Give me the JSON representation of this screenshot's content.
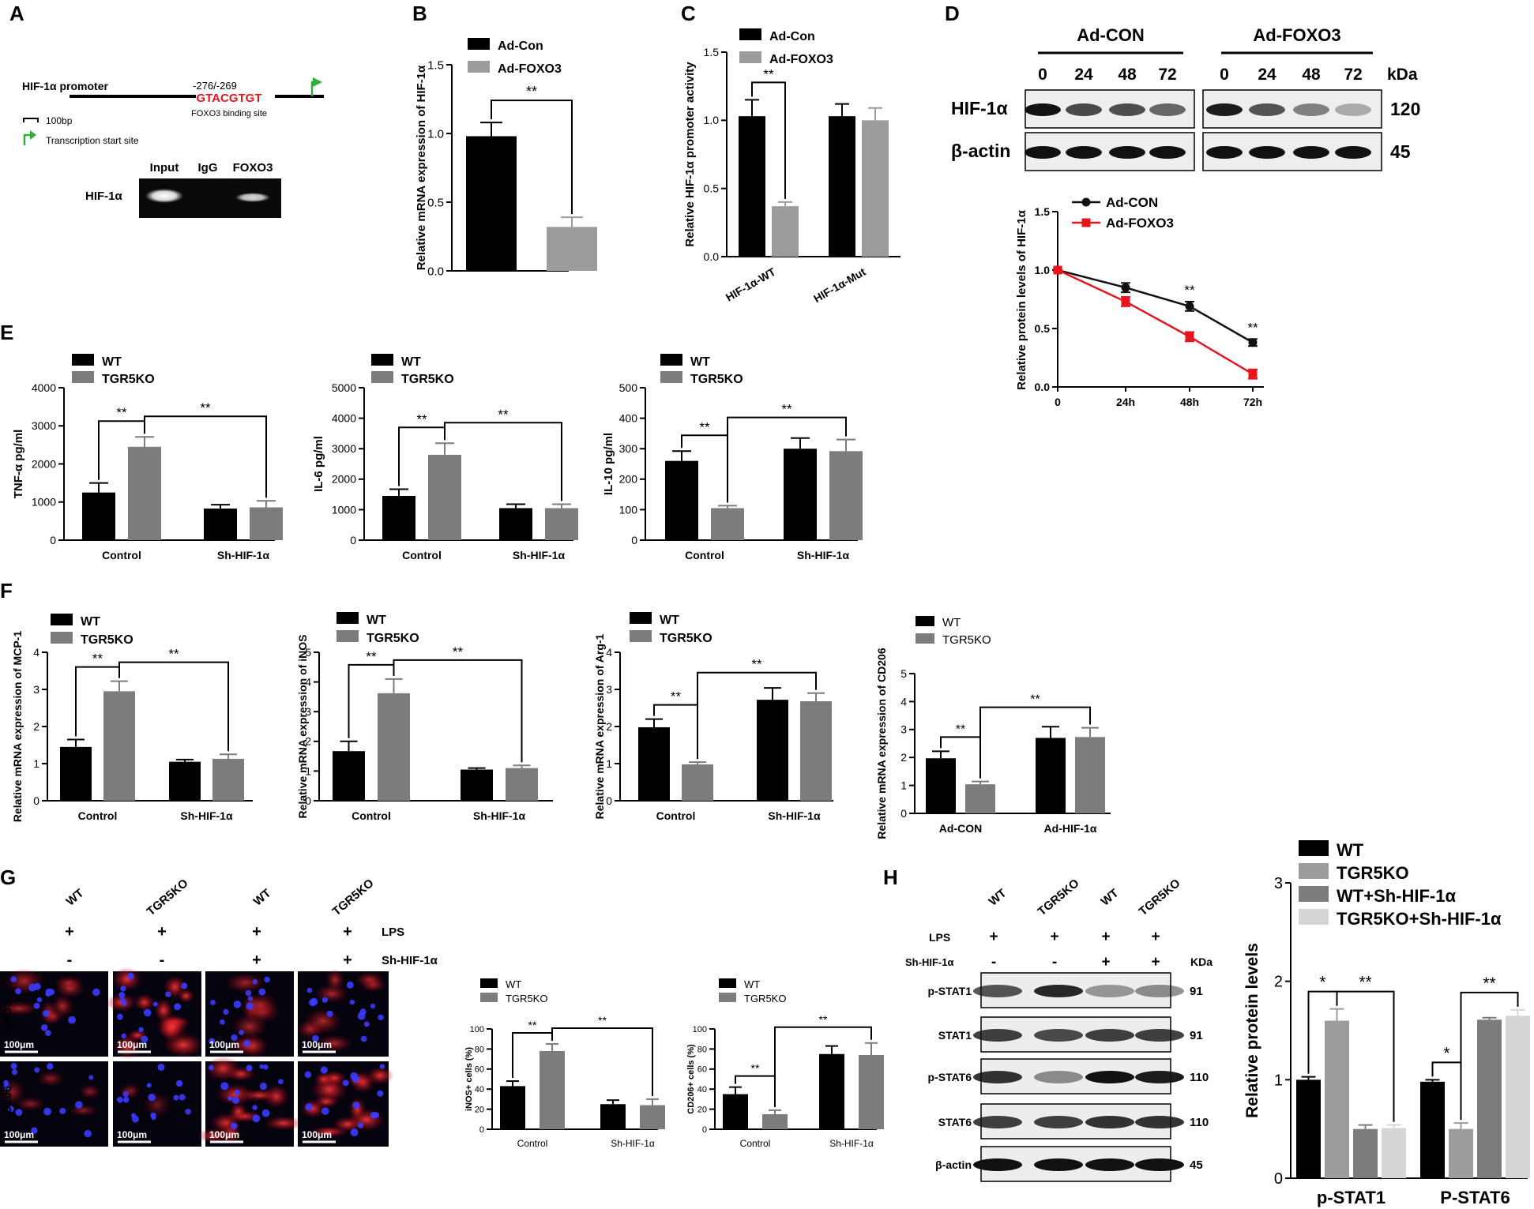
{
  "colors": {
    "black": "#000000",
    "gray": "#9c9c9c",
    "gray_dark": "#7c7c7c",
    "gray_light": "#d6d6d6",
    "red": "#e8161c",
    "green": "#2fae3a"
  },
  "panels": {
    "A": {
      "letter": "A",
      "promoter_label": "HIF-1α promoter",
      "position_label": "-276/-269",
      "site_seq": "GTACGTGT",
      "site_label": "FOXO3 binding site",
      "scale_label": "100bp",
      "tss_label": "Transcription start site",
      "gel_row_label": "HIF-1α",
      "gel_lanes": [
        "Input",
        "IgG",
        "FOXO3"
      ]
    },
    "D": {
      "letter": "D",
      "group1": "Ad-CON",
      "group2": "Ad-FOXO3",
      "timepoints": [
        "0",
        "24",
        "48",
        "72"
      ],
      "kda_label": "kDa",
      "rows": [
        {
          "name": "HIF-1α",
          "kda": "120"
        },
        {
          "name": "β-actin",
          "kda": "45"
        }
      ]
    },
    "E": {
      "letter": "E"
    },
    "F": {
      "letter": "F"
    },
    "G": {
      "letter": "G",
      "groups": [
        "WT",
        "TGR5KO",
        "WT",
        "TGR5KO"
      ],
      "lps_label": "LPS",
      "sh_label": "Sh-HIF-1α",
      "lps_signs": [
        "+",
        "+",
        "+",
        "+"
      ],
      "sh_signs": [
        "-",
        "-",
        "+",
        "+"
      ],
      "rows": [
        "iNOS",
        "CD206"
      ],
      "scale_label": "100μm"
    },
    "H": {
      "letter": "H",
      "groups": [
        "WT",
        "TGR5KO",
        "WT",
        "TGR5KO"
      ],
      "lps_label": "LPS",
      "sh_label": "Sh-HIF-1α",
      "lps_signs": [
        "+",
        "+",
        "+",
        "+"
      ],
      "sh_signs": [
        "-",
        "-",
        "+",
        "+"
      ],
      "kda_label": "KDa",
      "rows": [
        {
          "name": "p-STAT1",
          "kda": "91"
        },
        {
          "name": "STAT1",
          "kda": "91"
        },
        {
          "name": "p-STAT6",
          "kda": "110"
        },
        {
          "name": "STAT6",
          "kda": "110"
        },
        {
          "name": "β-actin",
          "kda": "45"
        }
      ]
    }
  },
  "chart_data": [
    {
      "id": "B",
      "letter": "B",
      "type": "bar",
      "categories": [
        ""
      ],
      "series": [
        {
          "name": "Ad-Con",
          "values": [
            0.98
          ],
          "err": [
            0.1
          ]
        },
        {
          "name": "Ad-FOXO3",
          "values": [
            0.32
          ],
          "err": [
            0.07
          ]
        }
      ],
      "ylabel": "Relative mRNA expression of HIF-1α",
      "ylim": [
        0,
        1.5
      ],
      "yticks": [
        "0.0",
        "0.5",
        "1.0",
        "1.5"
      ],
      "sig": [
        {
          "a": [
            0,
            0
          ],
          "b": [
            0,
            1
          ],
          "label": "**"
        }
      ]
    },
    {
      "id": "C",
      "letter": "C",
      "type": "bar",
      "categories": [
        "HIF-1α-WT",
        "HIF-1α-Mut"
      ],
      "rotate_xt": true,
      "series": [
        {
          "name": "Ad-Con",
          "values": [
            1.03,
            1.03
          ],
          "err": [
            0.12,
            0.09
          ]
        },
        {
          "name": "Ad-FOXO3",
          "values": [
            0.37,
            1.0
          ],
          "err": [
            0.03,
            0.09
          ]
        }
      ],
      "ylabel": "Relative HIF-1α promoter activity",
      "ylim": [
        0,
        1.5
      ],
      "yticks": [
        "0.0",
        "0.5",
        "1.0",
        "1.5"
      ],
      "sig": [
        {
          "a": [
            0,
            0
          ],
          "b": [
            0,
            1
          ],
          "label": "**"
        }
      ]
    },
    {
      "id": "Dline",
      "type": "line",
      "x": [
        "0",
        "24h",
        "48h",
        "72h"
      ],
      "series": [
        {
          "name": "Ad-CON",
          "values": [
            1.0,
            0.85,
            0.69,
            0.38
          ],
          "err": [
            0.01,
            0.04,
            0.04,
            0.03
          ]
        },
        {
          "name": "Ad-FOXO3",
          "values": [
            1.0,
            0.73,
            0.43,
            0.11
          ],
          "err": [
            0.01,
            0.04,
            0.04,
            0.04
          ]
        }
      ],
      "ylabel": "Relative protein levels of HIF-1α",
      "ylim": [
        0,
        1.5
      ],
      "yticks": [
        "0.0",
        "0.5",
        "1.0",
        "1.5"
      ],
      "annotations": [
        {
          "x": 2,
          "label": "**"
        },
        {
          "x": 3,
          "label": "**"
        }
      ],
      "legend": "top-left"
    },
    {
      "id": "E1",
      "type": "bar",
      "categories": [
        "Control",
        "Sh-HIF-1α"
      ],
      "series": [
        {
          "name": "WT",
          "values": [
            1250,
            830
          ],
          "err": [
            250,
            100
          ]
        },
        {
          "name": "TGR5KO",
          "values": [
            2450,
            860
          ],
          "err": [
            260,
            170
          ]
        }
      ],
      "ylabel": "TNF-α pg/ml",
      "ylim": [
        0,
        4000
      ],
      "yticks": [
        "0",
        "1000",
        "2000",
        "3000",
        "4000"
      ],
      "sig": [
        {
          "a": [
            0,
            0
          ],
          "b": [
            0,
            1
          ],
          "label": "**"
        },
        {
          "a": [
            0,
            1
          ],
          "b": [
            1,
            1
          ],
          "label": "**"
        }
      ]
    },
    {
      "id": "E2",
      "type": "bar",
      "categories": [
        "Control",
        "Sh-HIF-1α"
      ],
      "series": [
        {
          "name": "WT",
          "values": [
            1450,
            1050
          ],
          "err": [
            220,
            130
          ]
        },
        {
          "name": "TGR5KO",
          "values": [
            2800,
            1050
          ],
          "err": [
            380,
            130
          ]
        }
      ],
      "ylabel": "IL-6 pg/ml",
      "ylim": [
        0,
        5000
      ],
      "yticks": [
        "0",
        "1000",
        "2000",
        "3000",
        "4000",
        "5000"
      ],
      "sig": [
        {
          "a": [
            0,
            0
          ],
          "b": [
            0,
            1
          ],
          "label": "**"
        },
        {
          "a": [
            0,
            1
          ],
          "b": [
            1,
            1
          ],
          "label": "**"
        }
      ]
    },
    {
      "id": "E3",
      "type": "bar",
      "categories": [
        "Control",
        "Sh-HIF-1α"
      ],
      "series": [
        {
          "name": "WT",
          "values": [
            260,
            300
          ],
          "err": [
            32,
            35
          ]
        },
        {
          "name": "TGR5KO",
          "values": [
            105,
            292
          ],
          "err": [
            8,
            38
          ]
        }
      ],
      "ylabel": "IL-10 pg/ml",
      "ylim": [
        0,
        500
      ],
      "yticks": [
        "0",
        "100",
        "200",
        "300",
        "400",
        "500"
      ],
      "sig": [
        {
          "a": [
            0,
            0
          ],
          "b": [
            0,
            1
          ],
          "label": "**"
        },
        {
          "a": [
            0,
            1
          ],
          "b": [
            1,
            1
          ],
          "label": "**"
        }
      ]
    },
    {
      "id": "F1",
      "type": "bar",
      "categories": [
        "Control",
        "Sh-HIF-1α"
      ],
      "series": [
        {
          "name": "WT",
          "values": [
            1.45,
            1.05
          ],
          "err": [
            0.2,
            0.06
          ]
        },
        {
          "name": "TGR5KO",
          "values": [
            2.95,
            1.13
          ],
          "err": [
            0.27,
            0.12
          ]
        }
      ],
      "ylabel": "Relative mRNA expression of MCP-1",
      "ylim": [
        0,
        4
      ],
      "yticks": [
        "0",
        "1",
        "2",
        "3",
        "4"
      ],
      "sig": [
        {
          "a": [
            0,
            0
          ],
          "b": [
            0,
            1
          ],
          "label": "**"
        },
        {
          "a": [
            0,
            1
          ],
          "b": [
            1,
            1
          ],
          "label": "**"
        }
      ]
    },
    {
      "id": "F2",
      "type": "bar",
      "categories": [
        "Control",
        "Sh-HIF-1α"
      ],
      "series": [
        {
          "name": "WT",
          "values": [
            1.67,
            1.05
          ],
          "err": [
            0.33,
            0.05
          ]
        },
        {
          "name": "TGR5KO",
          "values": [
            3.62,
            1.1
          ],
          "err": [
            0.48,
            0.09
          ]
        }
      ],
      "ylabel": "Relative mRNA expression of iNOS",
      "ylim": [
        0,
        5
      ],
      "yticks": [
        "0",
        "1",
        "2",
        "3",
        "4",
        "5"
      ],
      "sig": [
        {
          "a": [
            0,
            0
          ],
          "b": [
            0,
            1
          ],
          "label": "**"
        },
        {
          "a": [
            0,
            1
          ],
          "b": [
            1,
            1
          ],
          "label": "**"
        }
      ]
    },
    {
      "id": "F3",
      "type": "bar",
      "categories": [
        "Control",
        "Sh-HIF-1α"
      ],
      "series": [
        {
          "name": "WT",
          "values": [
            1.98,
            2.72
          ],
          "err": [
            0.22,
            0.32
          ]
        },
        {
          "name": "TGR5KO",
          "values": [
            0.98,
            2.68
          ],
          "err": [
            0.06,
            0.22
          ]
        }
      ],
      "ylabel": "Relative mRNA expression of Arg-1",
      "ylim": [
        0,
        4
      ],
      "yticks": [
        "0",
        "1",
        "2",
        "3",
        "4"
      ],
      "sig": [
        {
          "a": [
            0,
            0
          ],
          "b": [
            0,
            1
          ],
          "label": "**"
        },
        {
          "a": [
            0,
            1
          ],
          "b": [
            1,
            1
          ],
          "label": "**"
        }
      ]
    },
    {
      "id": "F4",
      "type": "bar",
      "categories": [
        "Ad-CON",
        "Ad-HIF-1α"
      ],
      "series": [
        {
          "name": "WT",
          "values": [
            1.97,
            2.7
          ],
          "err": [
            0.25,
            0.4
          ]
        },
        {
          "name": "TGR5KO",
          "values": [
            1.04,
            2.73
          ],
          "err": [
            0.1,
            0.33
          ]
        }
      ],
      "ylabel": "Relative mRNA expression of CD206",
      "ylim": [
        0,
        5
      ],
      "yticks": [
        "0",
        "1",
        "2",
        "3",
        "4",
        "5"
      ],
      "sig": [
        {
          "a": [
            0,
            0
          ],
          "b": [
            0,
            1
          ],
          "label": "**"
        },
        {
          "a": [
            0,
            1
          ],
          "b": [
            1,
            1
          ],
          "label": "**"
        }
      ]
    },
    {
      "id": "G1",
      "type": "bar",
      "categories": [
        "Control",
        "Sh-HIF-1α"
      ],
      "series": [
        {
          "name": "WT",
          "values": [
            43,
            25
          ],
          "err": [
            5,
            4
          ]
        },
        {
          "name": "TGR5KO",
          "values": [
            78,
            24
          ],
          "err": [
            7,
            6
          ]
        }
      ],
      "ylabel": "iNOS+ cells (%)",
      "ylim": [
        0,
        100
      ],
      "yticks": [
        "0",
        "20",
        "40",
        "60",
        "80",
        "100"
      ],
      "sig": [
        {
          "a": [
            0,
            0
          ],
          "b": [
            0,
            1
          ],
          "label": "**"
        },
        {
          "a": [
            0,
            1
          ],
          "b": [
            1,
            1
          ],
          "label": "**"
        }
      ]
    },
    {
      "id": "G2",
      "type": "bar",
      "categories": [
        "Control",
        "Sh-HIF-1α"
      ],
      "series": [
        {
          "name": "WT",
          "values": [
            35,
            75
          ],
          "err": [
            7,
            8
          ]
        },
        {
          "name": "TGR5KO",
          "values": [
            15,
            74
          ],
          "err": [
            4,
            12
          ]
        }
      ],
      "ylabel": "CD206+ cells (%)",
      "ylim": [
        0,
        100
      ],
      "yticks": [
        "0",
        "20",
        "40",
        "60",
        "80",
        "100"
      ],
      "sig": [
        {
          "a": [
            0,
            0
          ],
          "b": [
            0,
            1
          ],
          "label": "**"
        },
        {
          "a": [
            0,
            1
          ],
          "b": [
            1,
            1
          ],
          "label": "**"
        }
      ]
    },
    {
      "id": "H",
      "type": "bar",
      "categories": [
        "p-STAT1",
        "P-STAT6"
      ],
      "series": [
        {
          "name": "WT",
          "values": [
            1.0,
            0.98
          ],
          "err": [
            0.03,
            0.02
          ]
        },
        {
          "name": "TGR5KO",
          "values": [
            1.6,
            0.5
          ],
          "err": [
            0.12,
            0.06
          ]
        },
        {
          "name": "WT+Sh-HIF-1α",
          "values": [
            0.5,
            1.61
          ],
          "err": [
            0.04,
            0.02
          ]
        },
        {
          "name": "TGR5KO+Sh-HIF-1α",
          "values": [
            0.51,
            1.65
          ],
          "err": [
            0.03,
            0.06
          ]
        }
      ],
      "ylabel": "Relative protein levels",
      "ylim": [
        0,
        3
      ],
      "yticks": [
        "0",
        "1",
        "2",
        "3"
      ],
      "sig": [
        {
          "a": [
            0,
            0
          ],
          "b": [
            0,
            1
          ],
          "label": "*"
        },
        {
          "a": [
            0,
            1
          ],
          "b": [
            0,
            3
          ],
          "label": "**"
        },
        {
          "a": [
            1,
            0
          ],
          "b": [
            1,
            1
          ],
          "label": "*"
        },
        {
          "a": [
            1,
            1
          ],
          "b": [
            1,
            3
          ],
          "label": "**"
        }
      ]
    }
  ]
}
